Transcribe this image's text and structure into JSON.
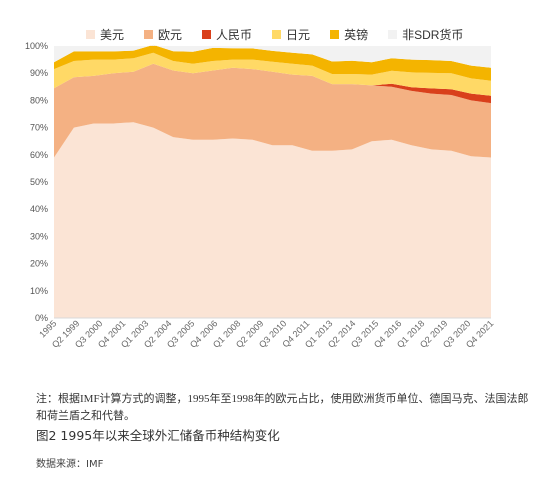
{
  "chart_data": {
    "type": "area",
    "stacked": true,
    "ylim": [
      0,
      100
    ],
    "y_ticks": [
      "0%",
      "10%",
      "20%",
      "30%",
      "40%",
      "50%",
      "60%",
      "70%",
      "80%",
      "90%",
      "100%"
    ],
    "x_ticks": [
      "1995",
      "Q2 1999",
      "Q3 2000",
      "Q4 2001",
      "Q1 2003",
      "Q2 2004",
      "Q3 2005",
      "Q4 2006",
      "Q1 2008",
      "Q2 2009",
      "Q3 2010",
      "Q4 2011",
      "Q1 2013",
      "Q2 2014",
      "Q3 2015",
      "Q4 2016",
      "Q1 2018",
      "Q2 2019",
      "Q3 2020",
      "Q4 2021"
    ],
    "legend_position": "top",
    "grid": false,
    "series": [
      {
        "name": "美元",
        "color": "#fbe4d5",
        "values": [
          59,
          70,
          71.5,
          71.5,
          72,
          70,
          66.5,
          65.5,
          65.5,
          66,
          65.5,
          63.5,
          63.5,
          61.5,
          61.5,
          62,
          65,
          65.5,
          63.5,
          62,
          61.5,
          59.5,
          59
        ]
      },
      {
        "name": "欧元",
        "color": "#f4b183",
        "values": [
          25.5,
          18.5,
          17.5,
          18.5,
          18.5,
          23.5,
          24.5,
          24.5,
          25.5,
          26,
          26,
          27,
          26,
          27.5,
          24.5,
          24,
          20.5,
          19.5,
          20,
          20.5,
          20.5,
          20.5,
          20
        ]
      },
      {
        "name": "人民币",
        "color": "#d9401b",
        "values": [
          0,
          0,
          0,
          0,
          0,
          0,
          0,
          0,
          0,
          0,
          0,
          0,
          0,
          0,
          0,
          0,
          0,
          1.1,
          1.3,
          1.9,
          2.1,
          2.5,
          2.7
        ]
      },
      {
        "name": "日元",
        "color": "#ffd966",
        "values": [
          7,
          6,
          6,
          5,
          5,
          4,
          3.5,
          3.5,
          3.5,
          3,
          3.5,
          3.7,
          4,
          3.8,
          3.7,
          3.7,
          4,
          4.8,
          5.5,
          5.7,
          5.9,
          5.6,
          5.5
        ]
      },
      {
        "name": "英镑",
        "color": "#f4b400",
        "values": [
          2.5,
          3.5,
          3,
          3,
          2.8,
          2.9,
          3.6,
          4.4,
          4.8,
          4.2,
          4.1,
          4,
          4,
          4.1,
          4.6,
          4.9,
          4.5,
          4.6,
          4.7,
          4.7,
          4.5,
          4.7,
          4.8
        ]
      },
      {
        "name": "非SDR货币",
        "color": "#f2f2f2",
        "values": [
          6,
          2,
          2,
          2,
          1.7,
          -0.4,
          1.9,
          2.1,
          0.7,
          0.8,
          0.9,
          1.8,
          2.5,
          3.1,
          5.7,
          5.4,
          6,
          4.5,
          5,
          5.2,
          5.5,
          7.2,
          8
        ]
      }
    ]
  },
  "note": "注：根据IMF计算方式的调整，1995年至1998年的欧元占比，使用欧洲货币单位、德国马克、法国法郎和荷兰盾之和代替。",
  "caption": "图2 1995年以来全球外汇储备币种结构变化",
  "source": "数据来源：IMF"
}
